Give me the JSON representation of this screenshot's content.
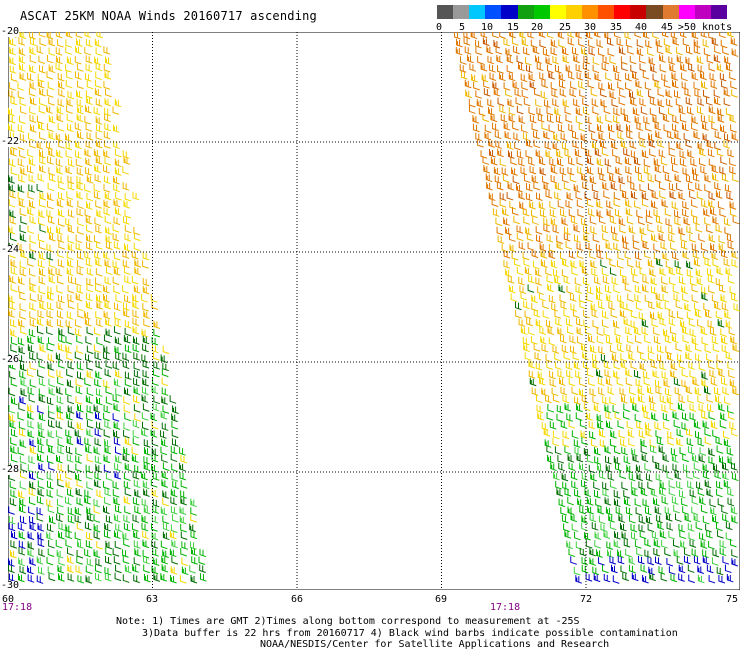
{
  "title": "ASCAT 25KM NOAA Winds 20160717 ascending",
  "legend": {
    "colors": [
      "#555555",
      "#9a9a9a",
      "#00c8ff",
      "#0050ff",
      "#0000c8",
      "#10a010",
      "#00c800",
      "#ffff00",
      "#ffd000",
      "#ff9000",
      "#ff5000",
      "#ff0000",
      "#c80000",
      "#7a4a20",
      "#e07a30",
      "#ff00ff",
      "#c000c0",
      "#5a00a0"
    ],
    "labels": [
      "0",
      "5",
      "10",
      "15",
      "20",
      "25",
      "30",
      "35",
      "40",
      "45",
      ">50 knots"
    ]
  },
  "map": {
    "lat_labels": [
      "-20",
      "-22",
      "-24",
      "-26",
      "-28",
      "-30"
    ],
    "lon_labels": [
      "60",
      "63",
      "66",
      "69",
      "72",
      "75"
    ],
    "time_labels": [
      "17:18",
      "17:18"
    ],
    "wind_colors": {
      "yellow": "#f5d800",
      "gold": "#f0b800",
      "orange": "#e07800",
      "darkorange": "#c85a00",
      "green": "#00b400",
      "darkgreen": "#006e00",
      "lightgreen": "#40d040",
      "blue": "#0000c8"
    }
  },
  "notes": {
    "line1": "Note: 1) Times are GMT 2)Times along bottom correspond to measurement at -25S",
    "line2": "3)Data buffer is 22 hrs from 20160717 4) Black wind barbs indicate possible contamination",
    "line3": "NOAA/NESDIS/Center for Satellite Applications and Research"
  }
}
